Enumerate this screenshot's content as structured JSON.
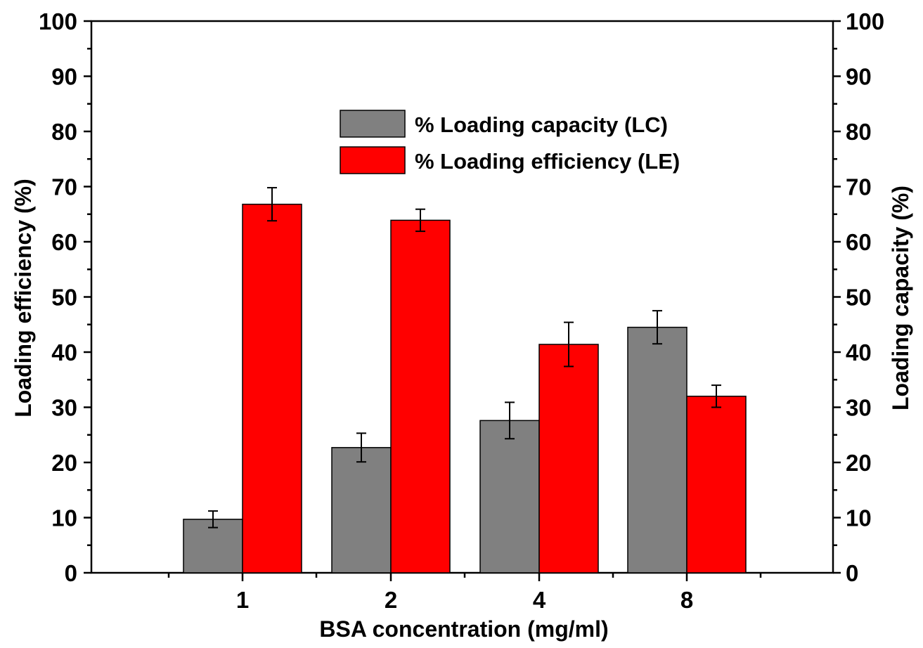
{
  "chart_data": {
    "type": "bar",
    "categories": [
      "1",
      "2",
      "4",
      "8"
    ],
    "xlabel": "BSA concentration (mg/ml)",
    "ylabel_left": "Loading efficiency (%)",
    "ylabel_right": "Loading capacity (%)",
    "ylim": [
      0,
      100
    ],
    "yticks": [
      0,
      10,
      20,
      30,
      40,
      50,
      60,
      70,
      80,
      90,
      100
    ],
    "legend_position": "top-right",
    "grid": false,
    "series": [
      {
        "name": "% Loading capacity (LC)",
        "axis": "right",
        "color": "#808080",
        "values": [
          9.7,
          22.7,
          27.6,
          44.5
        ],
        "errors": [
          1.5,
          2.6,
          3.3,
          3.0
        ]
      },
      {
        "name": "% Loading efficiency (LE)",
        "axis": "left",
        "color": "#ff0000",
        "values": [
          66.8,
          63.9,
          41.4,
          32.0
        ],
        "errors": [
          3.0,
          2.0,
          4.0,
          2.0
        ]
      }
    ]
  }
}
